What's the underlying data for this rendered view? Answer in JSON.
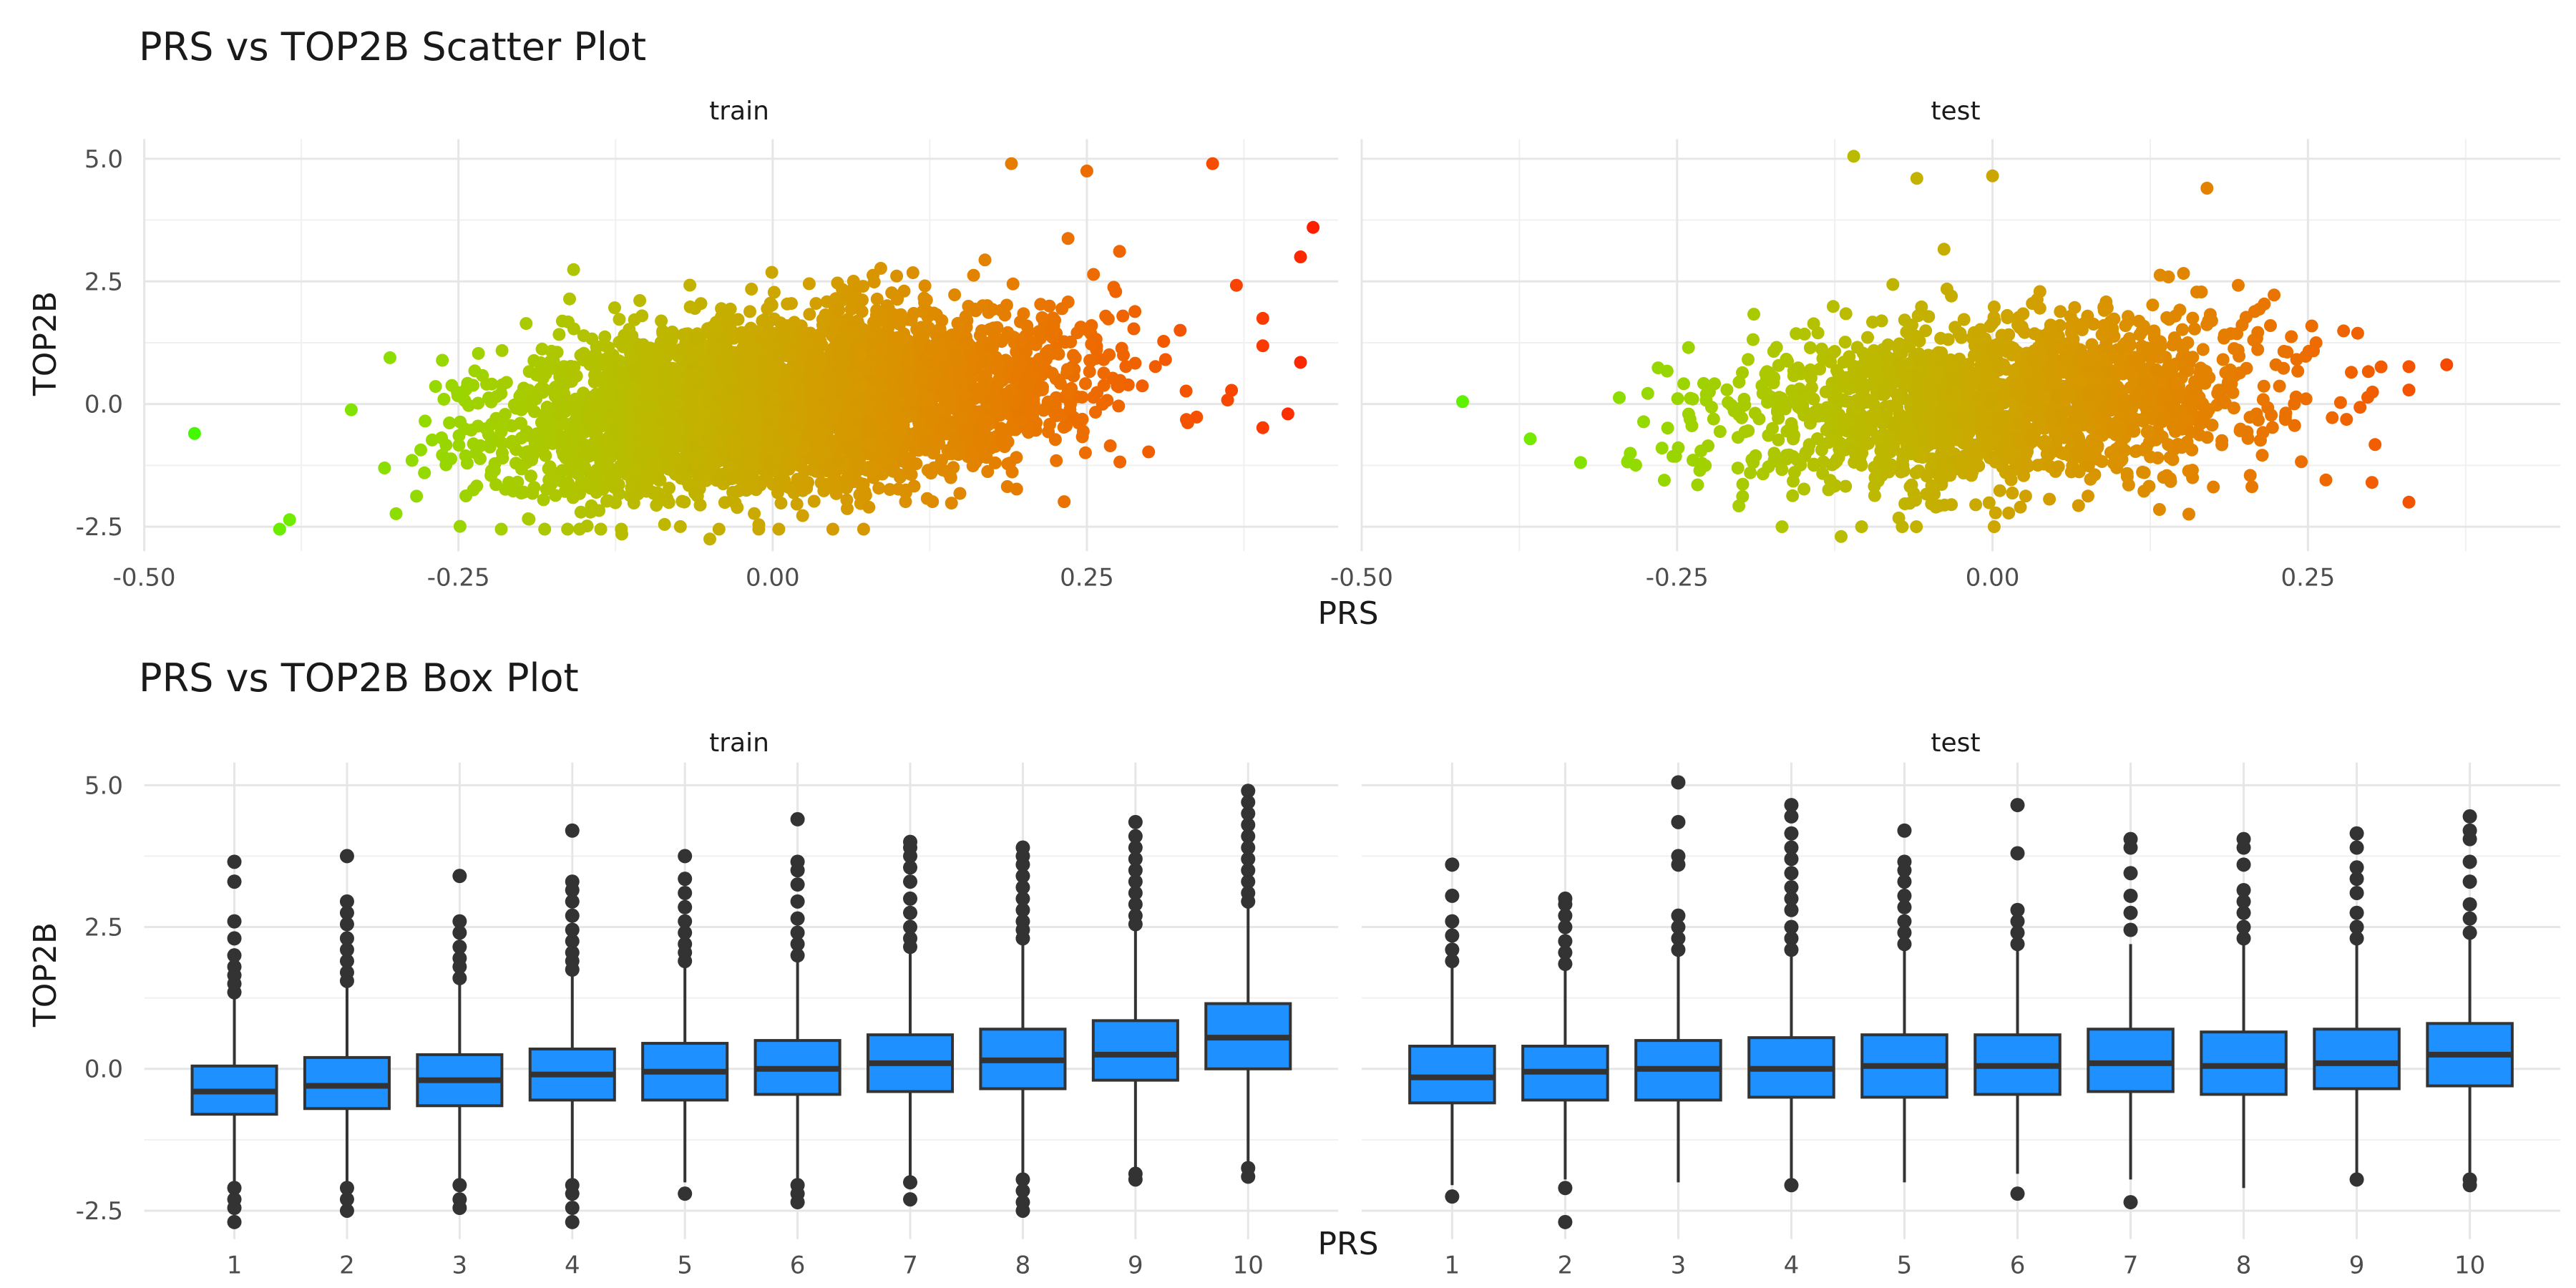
{
  "chart_data": [
    {
      "type": "scatter",
      "title": "PRS vs TOP2B Scatter Plot",
      "xlabel": "PRS",
      "ylabel": "TOP2B",
      "facets": [
        "train",
        "test"
      ],
      "xlim": [
        -0.5,
        0.45
      ],
      "ylim": [
        -2.5,
        5.0
      ],
      "x_ticks": [
        "-0.50",
        "-0.25",
        "0.00",
        "0.25"
      ],
      "y_ticks": [
        "-2.5",
        "0.0",
        "2.5",
        "5.0"
      ],
      "color_scale": {
        "low": "#00ff00",
        "high": "#ff0000"
      },
      "grid": true,
      "panels": [
        {
          "facet": "train",
          "n_points_approx": 20000,
          "x_range": [
            -0.46,
            0.43
          ],
          "y_range": [
            -2.75,
            4.95
          ],
          "trend": {
            "slope": 4.2,
            "intercept": 0.0,
            "sd": 0.85
          },
          "notable_points": [
            {
              "x": -0.46,
              "y": -0.6
            },
            {
              "x": 0.43,
              "y": 3.6
            },
            {
              "x": 0.42,
              "y": 0.85
            },
            {
              "x": 0.41,
              "y": -0.2
            },
            {
              "x": 0.35,
              "y": 4.9
            },
            {
              "x": 0.19,
              "y": 4.9
            },
            {
              "x": 0.25,
              "y": 4.75
            },
            {
              "x": -0.12,
              "y": -2.65
            },
            {
              "x": -0.05,
              "y": -2.75
            },
            {
              "x": 0.42,
              "y": 3.0
            }
          ]
        },
        {
          "facet": "test",
          "n_points_approx": 5000,
          "x_range": [
            -0.42,
            0.37
          ],
          "y_range": [
            -2.7,
            5.05
          ],
          "trend": {
            "slope": 2.5,
            "intercept": 0.0,
            "sd": 0.85
          },
          "notable_points": [
            {
              "x": -0.42,
              "y": 0.05
            },
            {
              "x": -0.11,
              "y": 5.05
            },
            {
              "x": -0.06,
              "y": 4.6
            },
            {
              "x": 0.0,
              "y": 4.65
            },
            {
              "x": 0.17,
              "y": 4.4
            },
            {
              "x": 0.36,
              "y": 0.8
            },
            {
              "x": 0.33,
              "y": -2.0
            },
            {
              "x": -0.12,
              "y": -2.7
            }
          ]
        }
      ]
    },
    {
      "type": "box",
      "title": "PRS vs TOP2B Box Plot",
      "xlabel": "PRS",
      "ylabel": "TOP2B",
      "facets": [
        "train",
        "test"
      ],
      "categories": [
        "1",
        "2",
        "3",
        "4",
        "5",
        "6",
        "7",
        "8",
        "9",
        "10"
      ],
      "ylim": [
        -2.5,
        5.0
      ],
      "y_ticks": [
        "-2.5",
        "0.0",
        "2.5",
        "5.0"
      ],
      "box_fill": "#1e90ff",
      "box_stroke": "#333333",
      "grid": true,
      "panels": [
        {
          "facet": "train",
          "boxes": [
            {
              "q1": -0.8,
              "median": -0.4,
              "q3": 0.05,
              "lower": -2.0,
              "upper": 1.3,
              "outliers_high": [
                1.35,
                1.5,
                1.65,
                1.8,
                2.0,
                2.3,
                2.6,
                3.3,
                3.65
              ],
              "outliers_low": [
                -2.1,
                -2.3,
                -2.45,
                -2.7
              ]
            },
            {
              "q1": -0.7,
              "median": -0.3,
              "q3": 0.2,
              "lower": -2.0,
              "upper": 1.5,
              "outliers_high": [
                1.55,
                1.7,
                1.9,
                2.1,
                2.3,
                2.55,
                2.75,
                2.95,
                3.75
              ],
              "outliers_low": [
                -2.1,
                -2.3,
                -2.5
              ]
            },
            {
              "q1": -0.65,
              "median": -0.2,
              "q3": 0.25,
              "lower": -2.0,
              "upper": 1.55,
              "outliers_high": [
                1.6,
                1.8,
                1.95,
                2.15,
                2.4,
                2.6,
                3.4
              ],
              "outliers_low": [
                -2.05,
                -2.3,
                -2.45
              ]
            },
            {
              "q1": -0.55,
              "median": -0.1,
              "q3": 0.35,
              "lower": -2.0,
              "upper": 1.7,
              "outliers_high": [
                1.75,
                1.9,
                2.05,
                2.25,
                2.45,
                2.7,
                2.95,
                3.15,
                3.3,
                4.2
              ],
              "outliers_low": [
                -2.05,
                -2.2,
                -2.45,
                -2.7
              ]
            },
            {
              "q1": -0.55,
              "median": -0.05,
              "q3": 0.45,
              "lower": -2.0,
              "upper": 1.85,
              "outliers_high": [
                1.9,
                2.05,
                2.2,
                2.4,
                2.6,
                2.85,
                3.1,
                3.35,
                3.75
              ],
              "outliers_low": [
                -2.2
              ]
            },
            {
              "q1": -0.45,
              "median": 0.0,
              "q3": 0.5,
              "lower": -1.95,
              "upper": 1.95,
              "outliers_high": [
                2.0,
                2.2,
                2.4,
                2.65,
                2.95,
                3.25,
                3.5,
                3.65,
                4.4
              ],
              "outliers_low": [
                -2.05,
                -2.2,
                -2.35
              ]
            },
            {
              "q1": -0.4,
              "median": 0.1,
              "q3": 0.6,
              "lower": -1.9,
              "upper": 2.1,
              "outliers_high": [
                2.15,
                2.3,
                2.5,
                2.75,
                3.0,
                3.3,
                3.55,
                3.75,
                3.9,
                4.0
              ],
              "outliers_low": [
                -2.0,
                -2.3
              ]
            },
            {
              "q1": -0.35,
              "median": 0.15,
              "q3": 0.7,
              "lower": -1.85,
              "upper": 2.25,
              "outliers_high": [
                2.3,
                2.45,
                2.6,
                2.8,
                3.0,
                3.2,
                3.4,
                3.6,
                3.75,
                3.9
              ],
              "outliers_low": [
                -1.95,
                -2.15,
                -2.35,
                -2.5
              ]
            },
            {
              "q1": -0.2,
              "median": 0.25,
              "q3": 0.85,
              "lower": -1.75,
              "upper": 2.5,
              "outliers_high": [
                2.55,
                2.7,
                2.9,
                3.1,
                3.3,
                3.5,
                3.7,
                3.9,
                4.1,
                4.35
              ],
              "outliers_low": [
                -1.85,
                -1.95
              ]
            },
            {
              "q1": 0.0,
              "median": 0.55,
              "q3": 1.15,
              "lower": -1.65,
              "upper": 2.9,
              "outliers_high": [
                2.95,
                3.1,
                3.3,
                3.5,
                3.7,
                3.9,
                4.1,
                4.3,
                4.5,
                4.7,
                4.9
              ],
              "outliers_low": [
                -1.75,
                -1.9
              ]
            }
          ]
        },
        {
          "facet": "test",
          "boxes": [
            {
              "q1": -0.6,
              "median": -0.15,
              "q3": 0.4,
              "lower": -2.05,
              "upper": 1.8,
              "outliers_high": [
                1.9,
                2.1,
                2.35,
                2.6,
                3.05,
                3.6
              ],
              "outliers_low": [
                -2.25
              ]
            },
            {
              "q1": -0.55,
              "median": -0.05,
              "q3": 0.4,
              "lower": -1.95,
              "upper": 1.8,
              "outliers_high": [
                1.85,
                2.05,
                2.25,
                2.5,
                2.7,
                2.9,
                3.0
              ],
              "outliers_low": [
                -2.1,
                -2.7
              ]
            },
            {
              "q1": -0.55,
              "median": 0.0,
              "q3": 0.5,
              "lower": -2.0,
              "upper": 2.0,
              "outliers_high": [
                2.1,
                2.3,
                2.5,
                2.7,
                3.6,
                3.75,
                4.35,
                5.05
              ],
              "outliers_low": []
            },
            {
              "q1": -0.5,
              "median": 0.0,
              "q3": 0.55,
              "lower": -2.0,
              "upper": 2.0,
              "outliers_high": [
                2.1,
                2.3,
                2.5,
                2.8,
                3.0,
                3.2,
                3.45,
                3.7,
                3.9,
                4.15,
                4.45,
                4.65
              ],
              "outliers_low": [
                -2.05
              ]
            },
            {
              "q1": -0.5,
              "median": 0.05,
              "q3": 0.6,
              "lower": -2.0,
              "upper": 2.1,
              "outliers_high": [
                2.2,
                2.4,
                2.6,
                2.85,
                3.05,
                3.3,
                3.5,
                3.65,
                4.2
              ],
              "outliers_low": []
            },
            {
              "q1": -0.45,
              "median": 0.05,
              "q3": 0.6,
              "lower": -1.85,
              "upper": 2.1,
              "outliers_high": [
                2.2,
                2.4,
                2.6,
                2.8,
                3.8,
                4.65
              ],
              "outliers_low": [
                -2.2
              ]
            },
            {
              "q1": -0.4,
              "median": 0.1,
              "q3": 0.7,
              "lower": -1.95,
              "upper": 2.2,
              "outliers_high": [
                2.45,
                2.75,
                3.05,
                3.45,
                3.9,
                4.05
              ],
              "outliers_low": [
                -2.35
              ]
            },
            {
              "q1": -0.45,
              "median": 0.05,
              "q3": 0.65,
              "lower": -2.1,
              "upper": 2.2,
              "outliers_high": [
                2.3,
                2.5,
                2.75,
                2.95,
                3.15,
                3.6,
                3.9,
                4.05
              ],
              "outliers_low": []
            },
            {
              "q1": -0.35,
              "median": 0.1,
              "q3": 0.7,
              "lower": -1.85,
              "upper": 2.2,
              "outliers_high": [
                2.3,
                2.5,
                2.75,
                3.1,
                3.35,
                3.55,
                3.9,
                4.15
              ],
              "outliers_low": [
                -1.95
              ]
            },
            {
              "q1": -0.3,
              "median": 0.25,
              "q3": 0.8,
              "lower": -1.85,
              "upper": 2.3,
              "outliers_high": [
                2.4,
                2.65,
                2.9,
                3.3,
                3.65,
                4.05,
                4.2,
                4.45
              ],
              "outliers_low": [
                -1.95,
                -2.05
              ]
            }
          ]
        }
      ]
    }
  ]
}
